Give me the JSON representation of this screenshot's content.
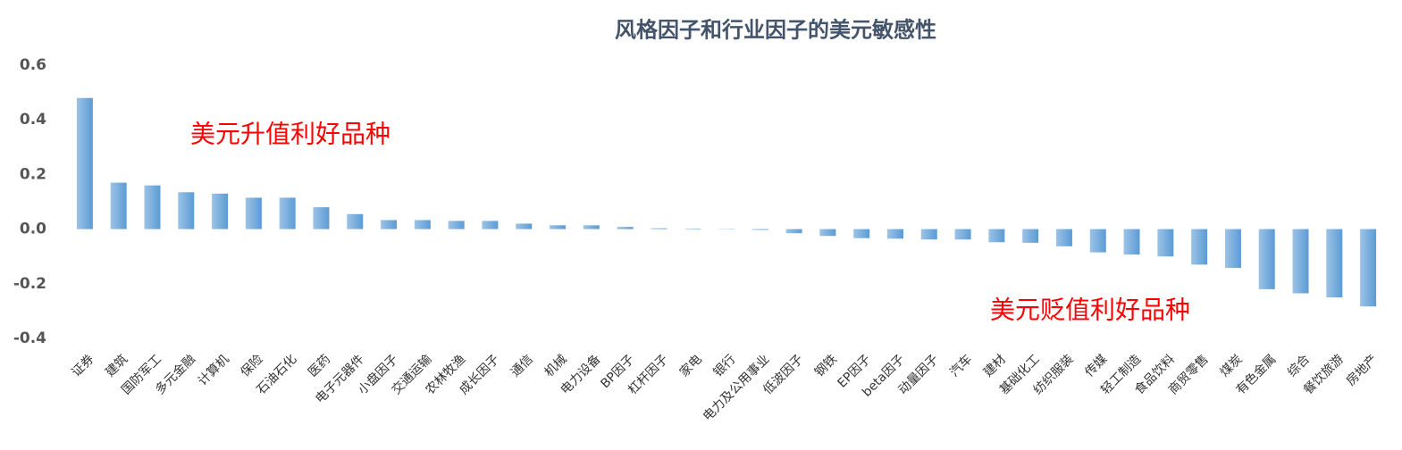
{
  "chart_data": {
    "type": "bar",
    "title": "风格因子和行业因子的美元敏感性",
    "categories": [
      "证券",
      "建筑",
      "国防军工",
      "多元金融",
      "计算机",
      "保险",
      "石油石化",
      "医药",
      "电子元器件",
      "小盘因子",
      "交通运输",
      "农林牧渔",
      "成长因子",
      "通信",
      "机械",
      "电力设备",
      "BP因子",
      "杠杆因子",
      "家电",
      "银行",
      "电力及公用事业",
      "低波因子",
      "钢铁",
      "EP因子",
      "beta因子",
      "动量因子",
      "汽车",
      "建材",
      "基础化工",
      "纺织服装",
      "传媒",
      "轻工制造",
      "食品饮料",
      "商贸零售",
      "煤炭",
      "有色金属",
      "综合",
      "餐饮旅游",
      "房地产"
    ],
    "values": [
      0.48,
      0.17,
      0.16,
      0.135,
      0.13,
      0.115,
      0.115,
      0.08,
      0.055,
      0.033,
      0.033,
      0.03,
      0.03,
      0.02,
      0.014,
      0.014,
      0.008,
      0.003,
      0.002,
      0.001,
      -0.003,
      -0.015,
      -0.025,
      -0.033,
      -0.035,
      -0.038,
      -0.038,
      -0.048,
      -0.05,
      -0.063,
      -0.085,
      -0.093,
      -0.1,
      -0.13,
      -0.142,
      -0.22,
      -0.235,
      -0.25,
      -0.283
    ],
    "color": "#5b9bd5",
    "ylim": [
      -0.4,
      0.6
    ],
    "yticks": [
      -0.4,
      -0.2,
      {
        "value": 0,
        "label": "0.0"
      },
      0.2,
      0.4,
      0.6
    ],
    "grid": false,
    "annotations": [
      "美元升值利好品种",
      "美元贬值利好品种"
    ]
  }
}
